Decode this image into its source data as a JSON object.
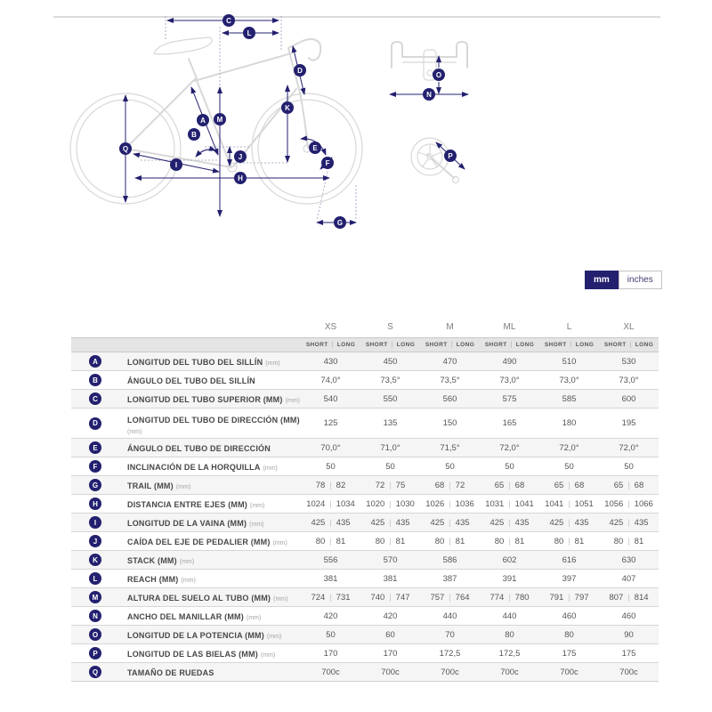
{
  "unit_toggle": {
    "options": [
      "mm",
      "inches"
    ],
    "selected": "mm"
  },
  "diagram": {
    "description": "bike-geometry-diagram",
    "badges": [
      "C",
      "L",
      "D",
      "A",
      "B",
      "M",
      "K",
      "J",
      "I",
      "Q",
      "H",
      "E",
      "F",
      "G",
      "O",
      "N",
      "P"
    ]
  },
  "colors": {
    "accent_navy": "#23206f",
    "row_stripe": "#f5f5f5",
    "subheader_bg": "#e4e4e4",
    "border": "#d6d6d6",
    "line_art": "#d8d8d8"
  },
  "table": {
    "sizes": [
      "XS",
      "S",
      "M",
      "ML",
      "L",
      "XL"
    ],
    "subheader": {
      "short": "SHORT",
      "long": "LONG"
    },
    "rows": [
      {
        "letter": "A",
        "label": "LONGITUD DEL TUBO DEL SILLÍN",
        "unit": "(mm)",
        "values": [
          "430",
          "450",
          "470",
          "490",
          "510",
          "530"
        ]
      },
      {
        "letter": "B",
        "label": "ÁNGULO DEL TUBO DEL SILLÍN",
        "unit": "",
        "values": [
          "74,0°",
          "73,5°",
          "73,5°",
          "73,0°",
          "73,0°",
          "73,0°"
        ]
      },
      {
        "letter": "C",
        "label": "LONGITUD DEL TUBO SUPERIOR (MM)",
        "unit": "(mm)",
        "values": [
          "540",
          "550",
          "560",
          "575",
          "585",
          "600"
        ]
      },
      {
        "letter": "D",
        "label": "LONGITUD DEL TUBO DE DIRECCIÓN (MM)",
        "unit": "(mm)",
        "two_line": true,
        "values": [
          "125",
          "135",
          "150",
          "165",
          "180",
          "195"
        ]
      },
      {
        "letter": "E",
        "label": "ÁNGULO DEL TUBO DE DIRECCIÓN",
        "unit": "",
        "values": [
          "70,0°",
          "71,0°",
          "71,5°",
          "72,0°",
          "72,0°",
          "72,0°"
        ]
      },
      {
        "letter": "F",
        "label": "INCLINACIÓN DE LA HORQUILLA",
        "unit": "(mm)",
        "values": [
          "50",
          "50",
          "50",
          "50",
          "50",
          "50"
        ]
      },
      {
        "letter": "G",
        "label": "TRAIL (MM)",
        "unit": "(mm)",
        "values": [
          [
            "78",
            "82"
          ],
          [
            "72",
            "75"
          ],
          [
            "68",
            "72"
          ],
          [
            "65",
            "68"
          ],
          [
            "65",
            "68"
          ],
          [
            "65",
            "68"
          ]
        ]
      },
      {
        "letter": "H",
        "label": "DISTANCIA ENTRE EJES (MM)",
        "unit": "(mm)",
        "values": [
          [
            "1024",
            "1034"
          ],
          [
            "1020",
            "1030"
          ],
          [
            "1026",
            "1036"
          ],
          [
            "1031",
            "1041"
          ],
          [
            "1041",
            "1051"
          ],
          [
            "1056",
            "1066"
          ]
        ]
      },
      {
        "letter": "I",
        "label": "LONGITUD DE LA VAINA (MM)",
        "unit": "(mm)",
        "values": [
          [
            "425",
            "435"
          ],
          [
            "425",
            "435"
          ],
          [
            "425",
            "435"
          ],
          [
            "425",
            "435"
          ],
          [
            "425",
            "435"
          ],
          [
            "425",
            "435"
          ]
        ]
      },
      {
        "letter": "J",
        "label": "CAÍDA DEL EJE DE PEDALIER (MM)",
        "unit": "(mm)",
        "values": [
          [
            "80",
            "81"
          ],
          [
            "80",
            "81"
          ],
          [
            "80",
            "81"
          ],
          [
            "80",
            "81"
          ],
          [
            "80",
            "81"
          ],
          [
            "80",
            "81"
          ]
        ]
      },
      {
        "letter": "K",
        "label": "STACK (MM)",
        "unit": "(mm)",
        "values": [
          "556",
          "570",
          "586",
          "602",
          "616",
          "630"
        ]
      },
      {
        "letter": "L",
        "label": "REACH (MM)",
        "unit": "(mm)",
        "values": [
          "381",
          "381",
          "387",
          "391",
          "397",
          "407"
        ]
      },
      {
        "letter": "M",
        "label": "ALTURA DEL SUELO AL TUBO (MM)",
        "unit": "(mm)",
        "values": [
          [
            "724",
            "731"
          ],
          [
            "740",
            "747"
          ],
          [
            "757",
            "764"
          ],
          [
            "774",
            "780"
          ],
          [
            "791",
            "797"
          ],
          [
            "807",
            "814"
          ]
        ]
      },
      {
        "letter": "N",
        "label": "ANCHO DEL MANILLAR (MM)",
        "unit": "(mm)",
        "values": [
          "420",
          "420",
          "440",
          "440",
          "460",
          "460"
        ]
      },
      {
        "letter": "O",
        "label": "LONGITUD DE LA POTENCIA (MM)",
        "unit": "(mm)",
        "values": [
          "50",
          "60",
          "70",
          "80",
          "80",
          "90"
        ]
      },
      {
        "letter": "P",
        "label": "LONGITUD DE LAS BIELAS (MM)",
        "unit": "(mm)",
        "values": [
          "170",
          "170",
          "172,5",
          "172,5",
          "175",
          "175"
        ]
      },
      {
        "letter": "Q",
        "label": "TAMAÑO DE RUEDAS",
        "unit": "",
        "values": [
          "700c",
          "700c",
          "700c",
          "700c",
          "700c",
          "700c"
        ]
      }
    ]
  }
}
